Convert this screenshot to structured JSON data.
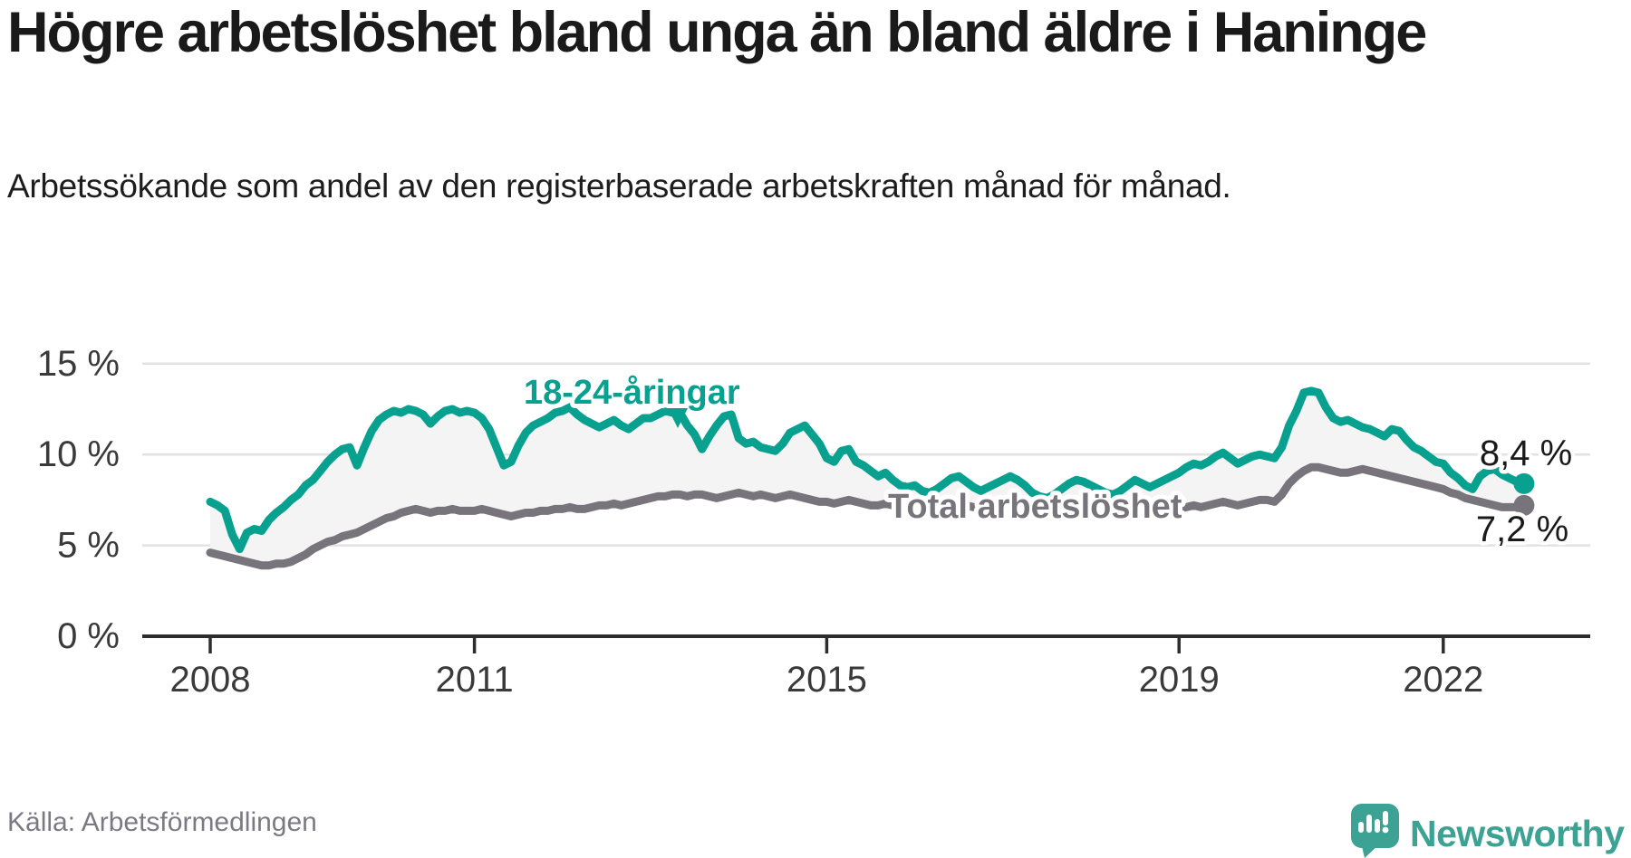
{
  "header": {
    "title": "Högre arbetslöshet bland unga än bland äldre i Haninge",
    "subtitle": "Arbetssökande som andel av den registerbaserade arbetskraften månad för månad."
  },
  "footer": {
    "source": "Källa: Arbetsförmedlingen",
    "brand": "Newsworthy",
    "logo_icon": "newsworthy-speech-bubble-chart-icon"
  },
  "colors": {
    "youth_line": "#08a08f",
    "total_line": "#77757b",
    "band_fill": "#f4f4f4",
    "gridline": "#e2e2e2",
    "axis": "#2d2d2d",
    "tick_text": "#3a3a3a",
    "label_text": "#1a1a1a",
    "source_text": "#7b7a84",
    "brand_teal": "#3ba294",
    "halo": "#ffffff"
  },
  "chart_data": {
    "type": "line",
    "frequency": "monthly",
    "x_start": "2008-01",
    "x_end": "2022-12",
    "grid": "horizontal",
    "legend_position": "inline-labels",
    "ylim": [
      0,
      15.5
    ],
    "yticks": [
      {
        "value": 0,
        "label": "0 %"
      },
      {
        "value": 5,
        "label": "5 %"
      },
      {
        "value": 10,
        "label": "10 %"
      },
      {
        "value": 15,
        "label": "15 %"
      }
    ],
    "xticks": [
      {
        "year": 2008,
        "label": "2008"
      },
      {
        "year": 2011,
        "label": "2011"
      },
      {
        "year": 2015,
        "label": "2015"
      },
      {
        "year": 2019,
        "label": "2019"
      },
      {
        "year": 2022,
        "label": "2022"
      }
    ],
    "series": [
      {
        "name": "18-24-åringar",
        "color": "#08a08f",
        "end_value": 8.4,
        "end_label": "8,4 %",
        "values": [
          7.4,
          7.2,
          6.9,
          5.6,
          4.8,
          5.7,
          5.9,
          5.8,
          6.4,
          6.8,
          7.1,
          7.5,
          7.8,
          8.3,
          8.6,
          9.1,
          9.6,
          10.0,
          10.3,
          10.4,
          9.4,
          10.4,
          11.3,
          11.9,
          12.2,
          12.4,
          12.3,
          12.5,
          12.4,
          12.2,
          11.7,
          12.1,
          12.4,
          12.5,
          12.3,
          12.4,
          12.3,
          12.0,
          11.4,
          10.4,
          9.4,
          9.6,
          10.5,
          11.2,
          11.6,
          11.8,
          12.0,
          12.3,
          12.4,
          12.6,
          12.2,
          11.9,
          11.7,
          11.5,
          11.7,
          11.9,
          11.6,
          11.4,
          11.7,
          12.0,
          12.0,
          12.2,
          12.4,
          12.3,
          12.3,
          11.6,
          11.1,
          10.3,
          11.0,
          11.6,
          12.1,
          12.2,
          10.9,
          10.6,
          10.7,
          10.4,
          10.3,
          10.2,
          10.6,
          11.2,
          11.4,
          11.6,
          11.1,
          10.6,
          9.8,
          9.6,
          10.2,
          10.3,
          9.6,
          9.4,
          9.1,
          8.8,
          9.0,
          8.6,
          8.3,
          8.2,
          8.3,
          8.0,
          7.9,
          8.1,
          8.4,
          8.7,
          8.8,
          8.5,
          8.2,
          8.0,
          8.2,
          8.4,
          8.6,
          8.8,
          8.6,
          8.3,
          7.9,
          7.7,
          7.6,
          7.8,
          8.1,
          8.4,
          8.6,
          8.5,
          8.3,
          8.1,
          7.9,
          7.8,
          8.0,
          8.3,
          8.6,
          8.4,
          8.2,
          8.4,
          8.6,
          8.8,
          9.0,
          9.3,
          9.5,
          9.4,
          9.6,
          9.9,
          10.1,
          9.8,
          9.5,
          9.7,
          9.9,
          10.0,
          9.9,
          9.8,
          10.4,
          11.6,
          12.4,
          13.4,
          13.5,
          13.4,
          12.6,
          12.0,
          11.8,
          11.9,
          11.7,
          11.5,
          11.4,
          11.2,
          11.0,
          11.4,
          11.3,
          10.8,
          10.4,
          10.2,
          9.9,
          9.6,
          9.5,
          9.0,
          8.7,
          8.3,
          8.1,
          8.8,
          9.1,
          9.2,
          8.9,
          8.7,
          8.5,
          8.4
        ]
      },
      {
        "name": "Total arbetslöshet",
        "color": "#77757b",
        "end_value": 7.2,
        "end_label": "7,2 %",
        "values": [
          4.6,
          4.5,
          4.4,
          4.3,
          4.2,
          4.1,
          4.0,
          3.9,
          3.9,
          4.0,
          4.0,
          4.1,
          4.3,
          4.5,
          4.8,
          5.0,
          5.2,
          5.3,
          5.5,
          5.6,
          5.7,
          5.9,
          6.1,
          6.3,
          6.5,
          6.6,
          6.8,
          6.9,
          7.0,
          6.9,
          6.8,
          6.9,
          6.9,
          7.0,
          6.9,
          6.9,
          6.9,
          7.0,
          6.9,
          6.8,
          6.7,
          6.6,
          6.7,
          6.8,
          6.8,
          6.9,
          6.9,
          7.0,
          7.0,
          7.1,
          7.0,
          7.0,
          7.1,
          7.2,
          7.2,
          7.3,
          7.2,
          7.3,
          7.4,
          7.5,
          7.6,
          7.7,
          7.7,
          7.8,
          7.8,
          7.7,
          7.8,
          7.8,
          7.7,
          7.6,
          7.7,
          7.8,
          7.9,
          7.8,
          7.7,
          7.8,
          7.7,
          7.6,
          7.7,
          7.8,
          7.7,
          7.6,
          7.5,
          7.4,
          7.4,
          7.3,
          7.4,
          7.5,
          7.4,
          7.3,
          7.2,
          7.2,
          7.3,
          7.2,
          7.1,
          7.2,
          7.2,
          7.1,
          7.0,
          7.1,
          7.2,
          7.3,
          7.3,
          7.2,
          7.1,
          7.0,
          7.1,
          7.2,
          7.2,
          7.3,
          7.2,
          7.1,
          7.0,
          6.9,
          7.0,
          7.1,
          7.2,
          7.1,
          7.0,
          7.1,
          7.1,
          7.0,
          6.9,
          6.8,
          6.7,
          6.8,
          6.9,
          7.0,
          6.9,
          6.8,
          6.9,
          7.0,
          7.0,
          7.1,
          7.2,
          7.1,
          7.2,
          7.3,
          7.4,
          7.3,
          7.2,
          7.3,
          7.4,
          7.5,
          7.5,
          7.4,
          7.8,
          8.4,
          8.8,
          9.1,
          9.3,
          9.3,
          9.2,
          9.1,
          9.0,
          9.0,
          9.1,
          9.2,
          9.1,
          9.0,
          8.9,
          8.8,
          8.7,
          8.6,
          8.5,
          8.4,
          8.3,
          8.2,
          8.1,
          7.9,
          7.8,
          7.6,
          7.5,
          7.4,
          7.3,
          7.2,
          7.1,
          7.1,
          7.1,
          7.2
        ]
      }
    ]
  }
}
